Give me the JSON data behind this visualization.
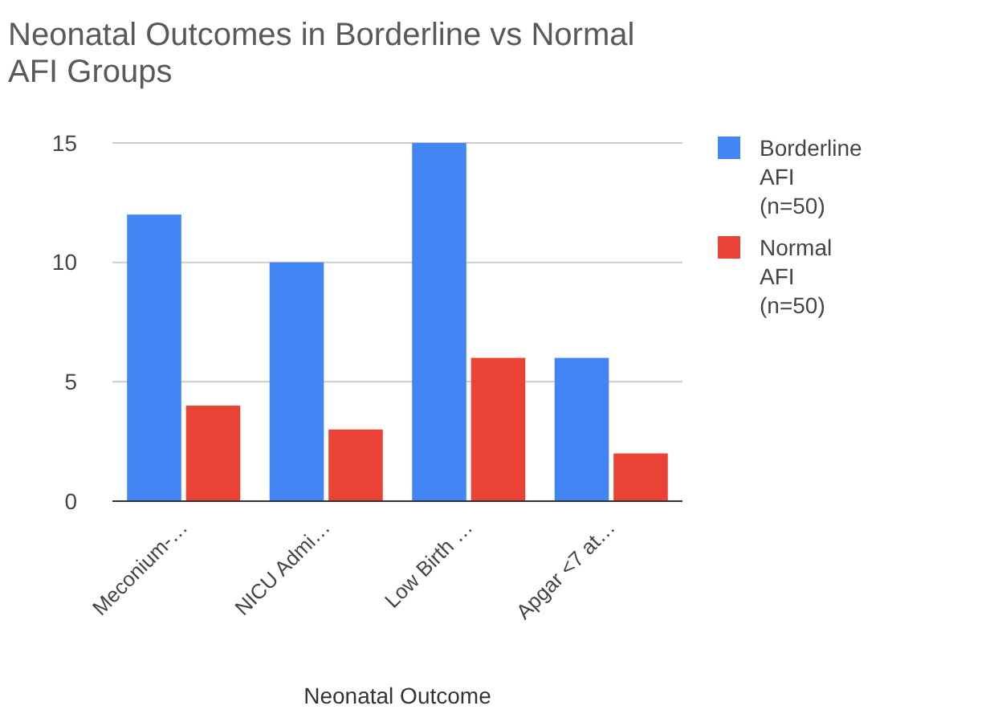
{
  "chart_data": {
    "type": "bar",
    "title": "Neonatal Outcomes in Borderline vs Normal AFI Groups",
    "xlabel": "Neonatal Outcome",
    "categories": [
      "Meconium-…",
      "NICU Admi…",
      "Low Birth …",
      "Apgar <7 at…"
    ],
    "series": [
      {
        "name": "Borderline AFI (n=50)",
        "color": "#4285f4",
        "values": [
          12,
          10,
          15,
          6
        ]
      },
      {
        "name": "Normal AFI (n=50)",
        "color": "#ea4335",
        "values": [
          4,
          3,
          6,
          2
        ]
      }
    ],
    "ylim": [
      0,
      15
    ],
    "yticks": [
      0,
      5,
      10,
      15
    ],
    "grid": "y",
    "legend": "right"
  }
}
